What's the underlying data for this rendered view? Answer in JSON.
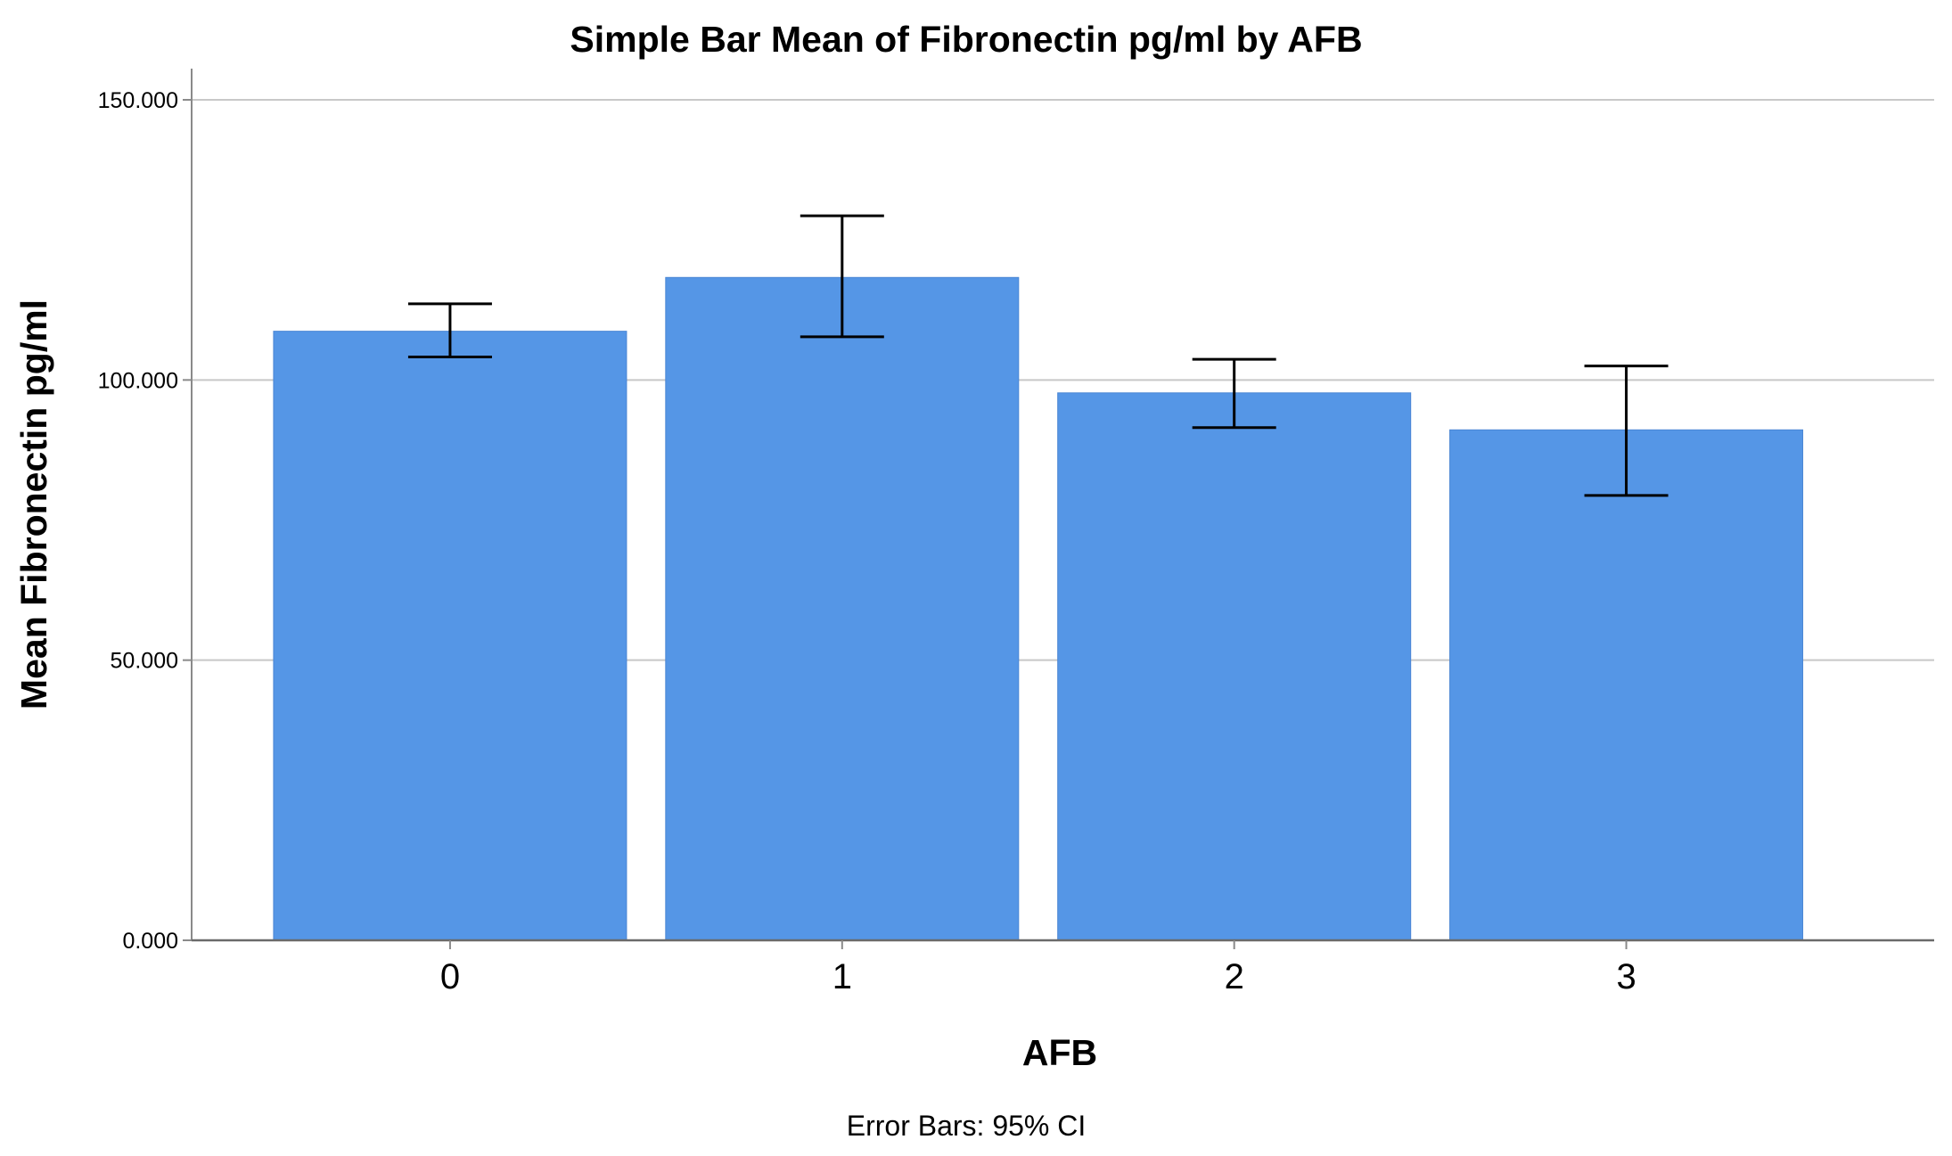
{
  "chart_data": {
    "type": "bar",
    "title": "Simple Bar Mean of Fibronectin pg/ml by AFB",
    "xlabel": "AFB",
    "ylabel": "Mean Fibronectin pg/ml",
    "categories": [
      "0",
      "1",
      "2",
      "3"
    ],
    "values": [
      108.7,
      118.3,
      97.7,
      91.1
    ],
    "error_bars": {
      "type": "95% CI",
      "lower": [
        104.1,
        107.7,
        91.5,
        79.4
      ],
      "upper": [
        113.6,
        129.3,
        103.7,
        102.5
      ]
    },
    "ylim": [
      0,
      150
    ],
    "yticks": [
      0,
      50,
      100,
      150
    ],
    "ytick_labels": [
      "0.000",
      "50.000",
      "100.000",
      "150.000"
    ],
    "grid": true,
    "bar_color": "#5596e6",
    "footnote": "Error Bars: 95% CI"
  }
}
